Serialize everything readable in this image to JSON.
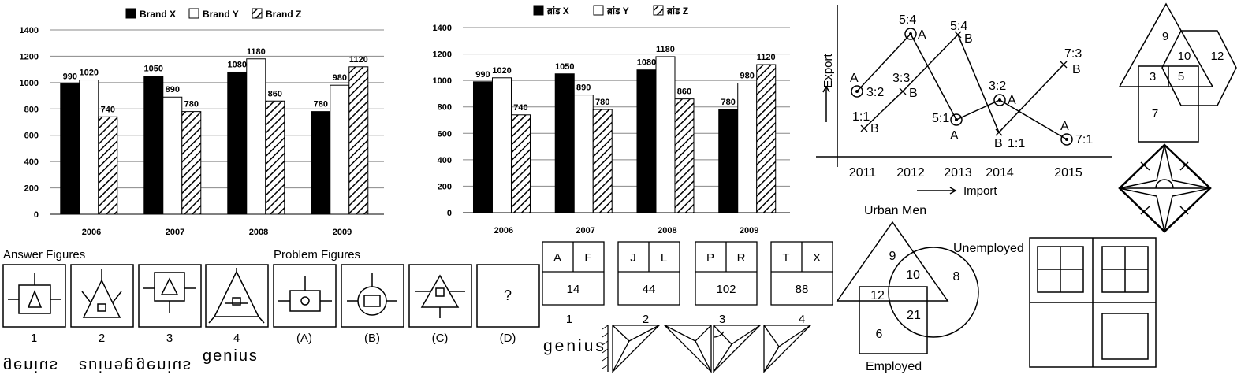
{
  "chart_data": [
    {
      "type": "bar",
      "categories": [
        "2006",
        "2007",
        "2008",
        "2009"
      ],
      "series": [
        {
          "name": "Brand X",
          "values": [
            990,
            1050,
            1080,
            780
          ],
          "pattern": "solid"
        },
        {
          "name": "Brand Y",
          "values": [
            1020,
            890,
            1180,
            980
          ],
          "pattern": "white"
        },
        {
          "name": "Brand Z",
          "values": [
            740,
            780,
            860,
            1120
          ],
          "pattern": "hatch"
        }
      ],
      "yticks": [
        0,
        200,
        400,
        600,
        800,
        1000,
        1200,
        1400
      ],
      "ylim": [
        0,
        1400
      ],
      "legend": "top"
    },
    {
      "type": "bar",
      "categories": [
        "2006",
        "2007",
        "2008",
        "2009"
      ],
      "series": [
        {
          "name": "ब्रांड X",
          "values": [
            990,
            1050,
            1080,
            780
          ],
          "pattern": "solid"
        },
        {
          "name": "ब्रांड Y",
          "values": [
            1020,
            890,
            1180,
            980
          ],
          "pattern": "white"
        },
        {
          "name": "ब्रांड Z",
          "values": [
            740,
            780,
            860,
            1120
          ],
          "pattern": "hatch"
        }
      ],
      "yticks": [
        0,
        200,
        400,
        600,
        800,
        1000,
        1200,
        1400
      ],
      "ylim": [
        0,
        1400
      ],
      "legend": "top"
    }
  ],
  "trade_graph": {
    "y_label": "Export",
    "x_label": "Import",
    "years": [
      "2011",
      "2012",
      "2013",
      "2014",
      "2015"
    ],
    "points": [
      {
        "letter": "A",
        "ratio": "3:2"
      },
      {
        "letter": "B",
        "ratio": "1:1"
      },
      {
        "letter": "A",
        "ratio": "5:4"
      },
      {
        "letter": "B",
        "ratio": "3:3"
      },
      {
        "letter": "B",
        "ratio": "5:4"
      },
      {
        "letter": "A",
        "ratio": "5:1"
      },
      {
        "letter": "A",
        "ratio": "3:2"
      },
      {
        "letter": "B",
        "ratio": "1:1"
      },
      {
        "letter": "B",
        "ratio": "7:3"
      },
      {
        "letter": "A",
        "ratio": "7:1"
      }
    ]
  },
  "venn_top_right": {
    "regions": [
      "9",
      "10",
      "12",
      "3",
      "5",
      "7"
    ]
  },
  "venn_bottom": {
    "labels": {
      "top": "Urban Men",
      "right": "Unemployed",
      "bottom": "Employed"
    },
    "regions": [
      "9",
      "10",
      "8",
      "12",
      "21",
      "6"
    ]
  },
  "answer_figures": {
    "title": "Answer Figures",
    "labels": [
      "1",
      "2",
      "3",
      "4"
    ],
    "mirror_word": "genius"
  },
  "problem_figures": {
    "title": "Problem Figures",
    "labels": [
      "(A)",
      "(B)",
      "(C)",
      "(D)"
    ],
    "question": "?"
  },
  "letter_boxes": [
    {
      "left": "A",
      "right": "F",
      "value": "14",
      "label": "1"
    },
    {
      "left": "J",
      "right": "L",
      "value": "44",
      "label": "2"
    },
    {
      "left": "P",
      "right": "R",
      "value": "102",
      "label": "3"
    },
    {
      "left": "T",
      "right": "X",
      "value": "88",
      "label": "4"
    }
  ],
  "genius_word": "genius"
}
